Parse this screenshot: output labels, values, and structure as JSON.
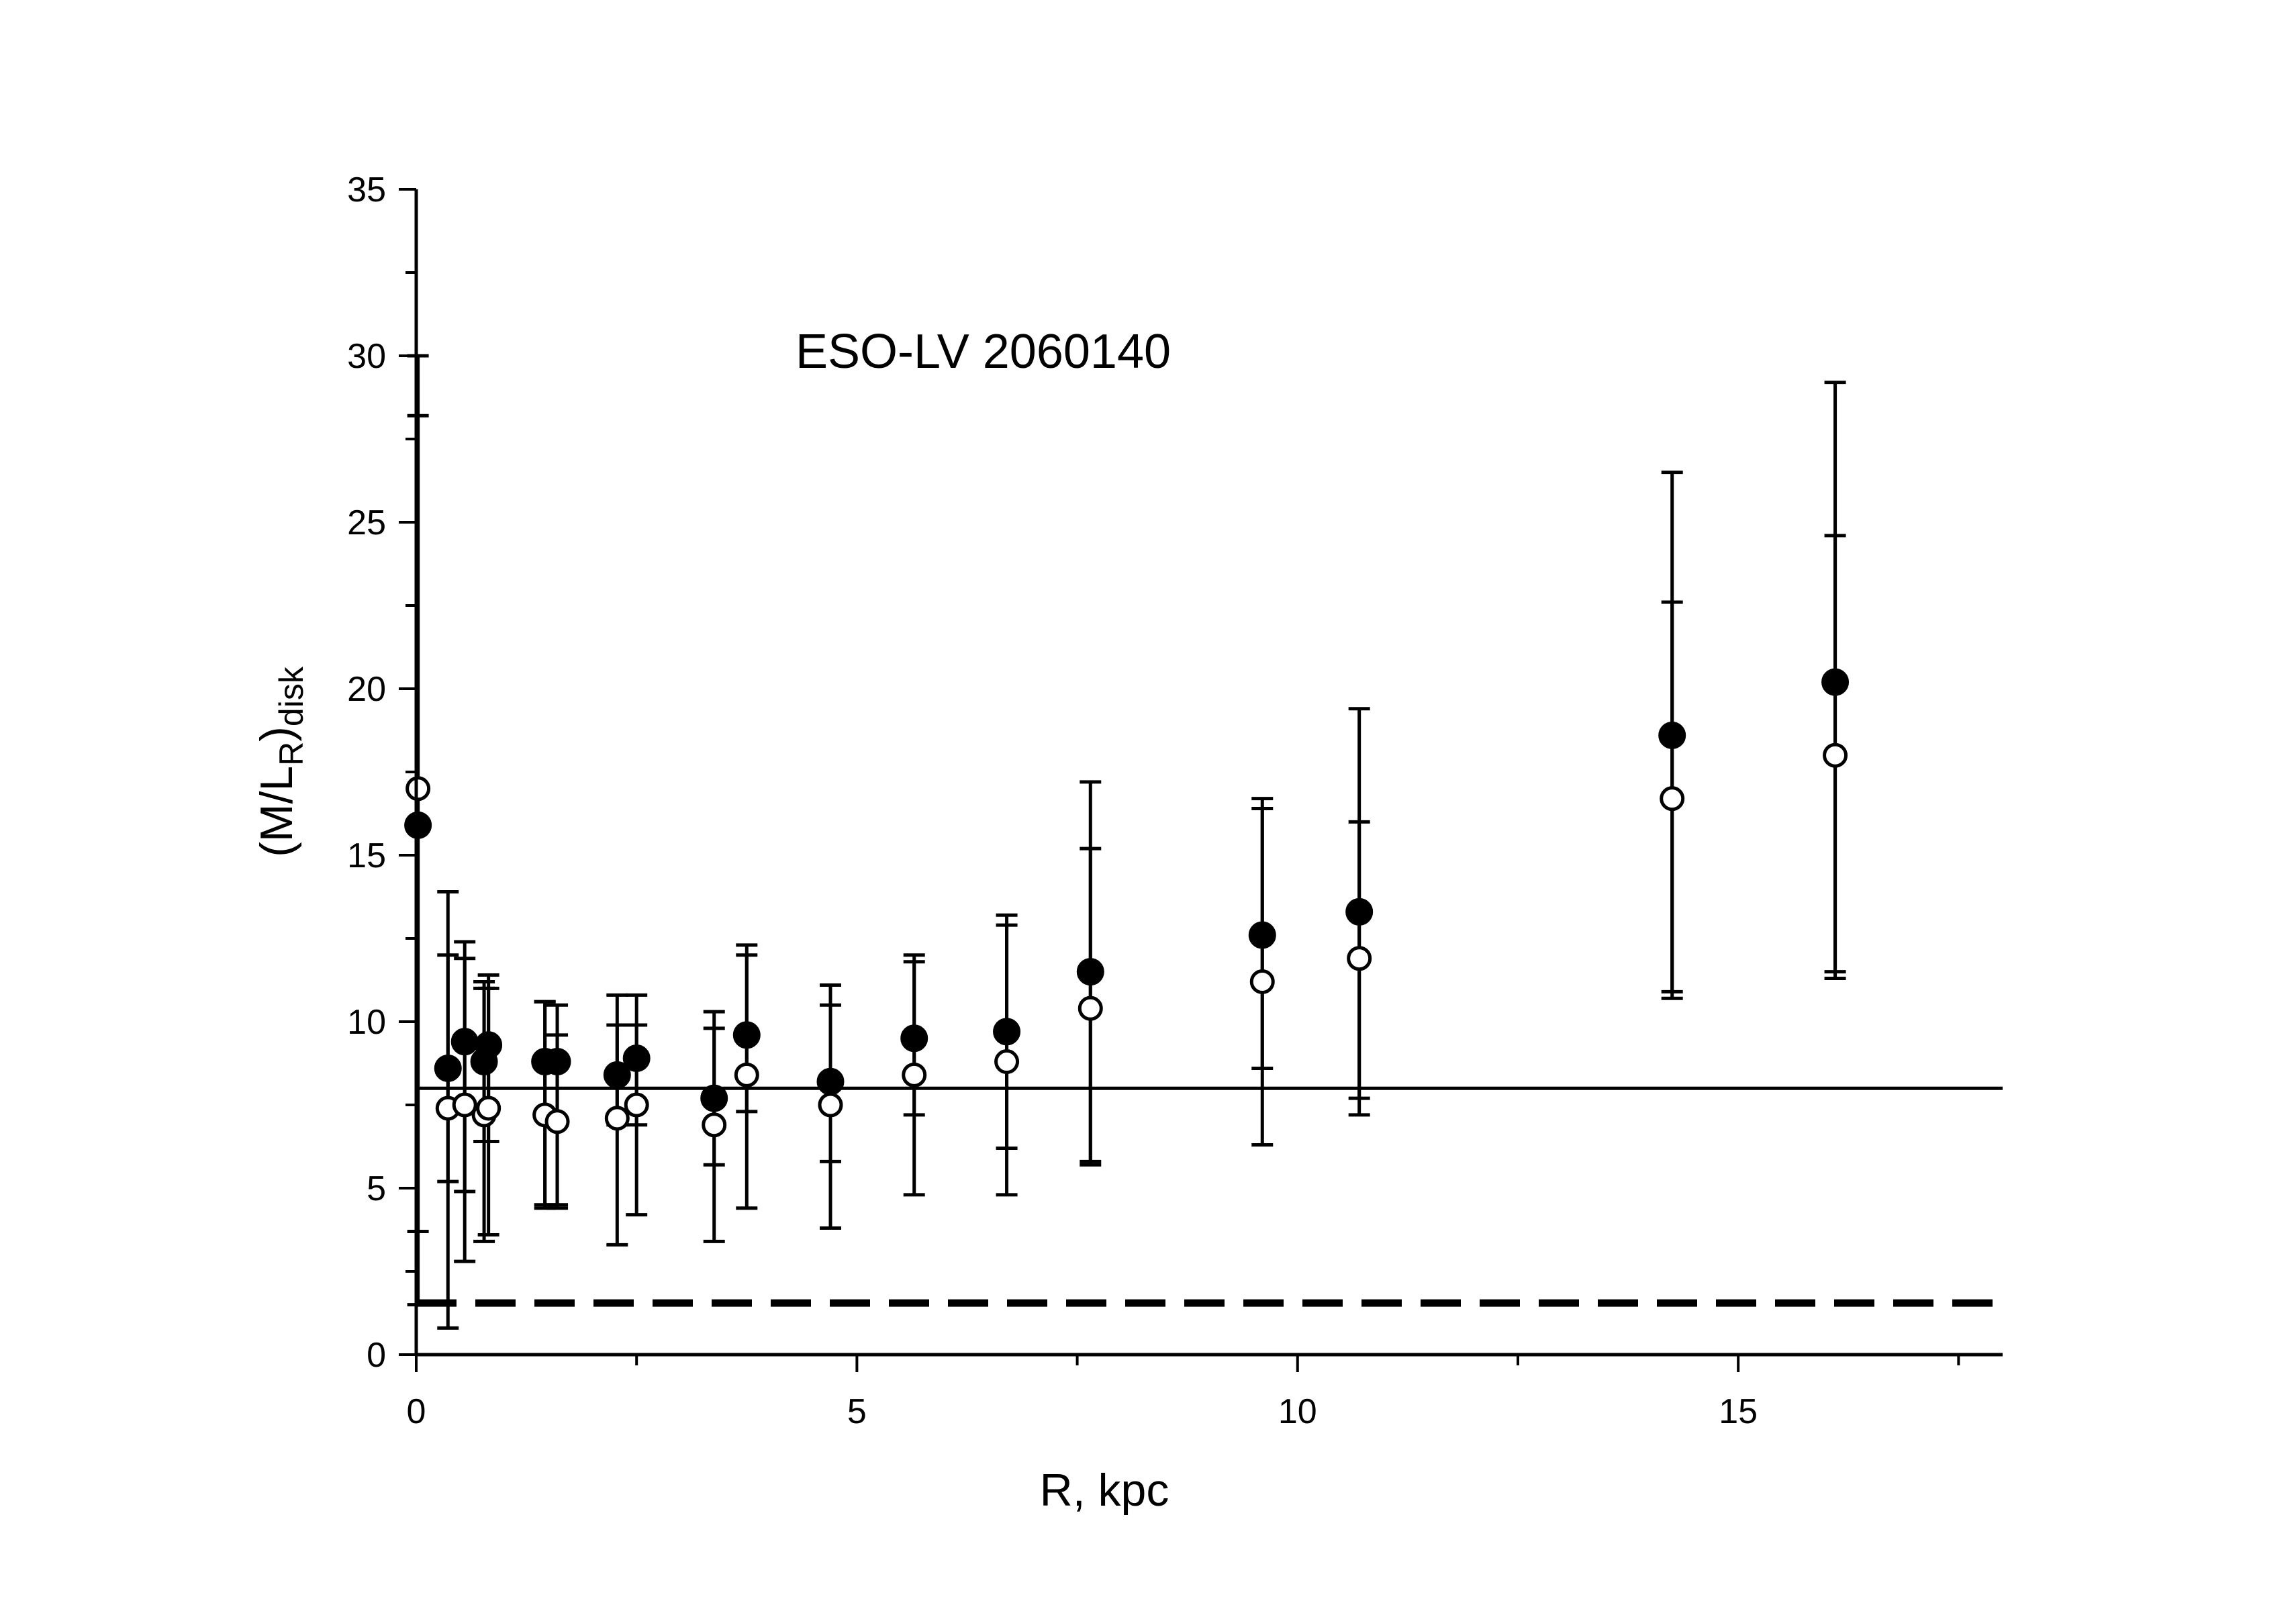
{
  "chart_data": {
    "type": "scatter",
    "title": "",
    "annotation": "ESO-LV 2060140",
    "xlabel": "R, kpc",
    "ylabel_main": "(M/L",
    "ylabel_sub1": "R",
    "ylabel_close": ")",
    "ylabel_sub2": "disk",
    "xlim": [
      0,
      18
    ],
    "ylim": [
      0,
      35
    ],
    "x_ticks": [
      "0",
      "5",
      "10",
      "15"
    ],
    "y_ticks": [
      "0",
      "5",
      "10",
      "15",
      "20",
      "25",
      "30",
      "35"
    ],
    "grid": false,
    "legend": "none",
    "series": [
      {
        "marker": "filled-circle",
        "color": "#000000",
        "points": [
          {
            "x": 0.02,
            "y": 15.9,
            "lo": 1.5,
            "hi": 30.0
          },
          {
            "x": 0.36,
            "y": 8.6,
            "lo": 0.8,
            "hi": 13.9
          },
          {
            "x": 0.55,
            "y": 9.4,
            "lo": 2.8,
            "hi": 12.4
          },
          {
            "x": 0.77,
            "y": 8.8,
            "lo": 3.4,
            "hi": 11.2
          },
          {
            "x": 0.82,
            "y": 9.3,
            "lo": 3.6,
            "hi": 11.4
          },
          {
            "x": 1.46,
            "y": 8.8,
            "lo": 4.4,
            "hi": 10.6
          },
          {
            "x": 1.6,
            "y": 8.8,
            "lo": 4.4,
            "hi": 10.5
          },
          {
            "x": 2.28,
            "y": 8.4,
            "lo": 3.3,
            "hi": 10.8
          },
          {
            "x": 2.5,
            "y": 8.9,
            "lo": 4.2,
            "hi": 10.8
          },
          {
            "x": 3.38,
            "y": 7.7,
            "lo": 3.4,
            "hi": 10.3
          },
          {
            "x": 3.75,
            "y": 9.6,
            "lo": 4.4,
            "hi": 12.3
          },
          {
            "x": 4.7,
            "y": 8.2,
            "lo": 3.8,
            "hi": 11.1
          },
          {
            "x": 5.65,
            "y": 9.5,
            "lo": 4.8,
            "hi": 12.0
          },
          {
            "x": 6.7,
            "y": 9.7,
            "lo": 4.8,
            "hi": 13.2
          },
          {
            "x": 7.65,
            "y": 11.5,
            "lo": 5.7,
            "hi": 17.2
          },
          {
            "x": 9.6,
            "y": 12.6,
            "lo": 6.3,
            "hi": 16.7
          },
          {
            "x": 10.7,
            "y": 13.3,
            "lo": 7.2,
            "hi": 19.4
          },
          {
            "x": 14.25,
            "y": 18.6,
            "lo": 10.7,
            "hi": 26.5
          },
          {
            "x": 16.1,
            "y": 20.2,
            "lo": 11.3,
            "hi": 29.2
          }
        ]
      },
      {
        "marker": "open-circle",
        "color": "#000000",
        "points": [
          {
            "x": 0.02,
            "y": 17.0,
            "lo": 3.7,
            "hi": 28.2
          },
          {
            "x": 0.36,
            "y": 7.4,
            "lo": 5.2,
            "hi": 12.0
          },
          {
            "x": 0.55,
            "y": 7.5,
            "lo": 4.9,
            "hi": 11.9
          },
          {
            "x": 0.77,
            "y": 7.2,
            "lo": 6.4,
            "hi": 11.0
          },
          {
            "x": 0.82,
            "y": 7.4,
            "lo": 6.4,
            "hi": 11.0
          },
          {
            "x": 1.46,
            "y": 7.2,
            "lo": 4.5,
            "hi": 10.6
          },
          {
            "x": 1.6,
            "y": 7.0,
            "lo": 4.5,
            "hi": 9.6
          },
          {
            "x": 2.28,
            "y": 7.1,
            "lo": 6.9,
            "hi": 9.9
          },
          {
            "x": 2.5,
            "y": 7.5,
            "lo": 6.9,
            "hi": 9.9
          },
          {
            "x": 3.38,
            "y": 6.9,
            "lo": 5.7,
            "hi": 9.8
          },
          {
            "x": 3.75,
            "y": 8.4,
            "lo": 7.3,
            "hi": 12.0
          },
          {
            "x": 4.7,
            "y": 7.5,
            "lo": 5.8,
            "hi": 10.5
          },
          {
            "x": 5.65,
            "y": 8.4,
            "lo": 7.2,
            "hi": 11.8
          },
          {
            "x": 6.7,
            "y": 8.8,
            "lo": 6.2,
            "hi": 12.9
          },
          {
            "x": 7.65,
            "y": 10.4,
            "lo": 5.8,
            "hi": 15.2
          },
          {
            "x": 9.6,
            "y": 11.2,
            "lo": 8.6,
            "hi": 16.4
          },
          {
            "x": 10.7,
            "y": 11.9,
            "lo": 7.7,
            "hi": 16.0
          },
          {
            "x": 14.25,
            "y": 16.7,
            "lo": 10.9,
            "hi": 22.6
          },
          {
            "x": 16.1,
            "y": 18.0,
            "lo": 11.5,
            "hi": 24.6
          }
        ]
      }
    ],
    "reference_lines": [
      {
        "style": "solid",
        "y": 8.0,
        "x_from": 0,
        "x_to": 18
      },
      {
        "style": "dashed",
        "y": 1.55,
        "x_from": 0,
        "x_to": 18
      }
    ]
  }
}
